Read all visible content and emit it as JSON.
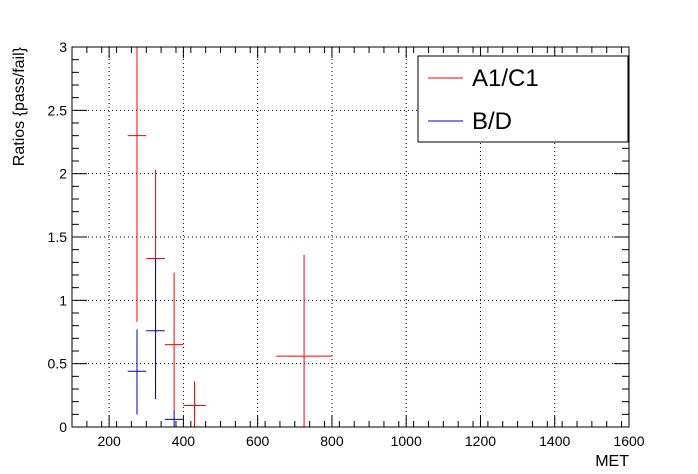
{
  "chart_data": {
    "type": "scatter",
    "style": "error-bars",
    "title": "",
    "xlabel": "MET",
    "ylabel": "Ratios  {pass/fail}",
    "xlim": [
      100,
      1600
    ],
    "ylim": [
      0,
      3
    ],
    "xticks": [
      200,
      400,
      600,
      800,
      1000,
      1200,
      1400,
      1600
    ],
    "xtick_labels": [
      "200",
      "400",
      "600",
      "800",
      "1000",
      "1200",
      "1400",
      "1600"
    ],
    "yticks": [
      0,
      0.5,
      1,
      1.5,
      2,
      2.5,
      3
    ],
    "ytick_labels": [
      "0",
      "0.5",
      "1",
      "1.5",
      "2",
      "2.5",
      "3"
    ],
    "grid": true,
    "legend_position": "top-right",
    "series": [
      {
        "name": "A1/C1",
        "color": "#ff0000",
        "points": [
          {
            "x": 275,
            "y": 2.3,
            "xerr": 25,
            "ylow": 0.83,
            "yhigh": 3.0
          },
          {
            "x": 325,
            "y": 1.33,
            "xerr": 25,
            "ylow": 0.22,
            "yhigh": 2.03
          },
          {
            "x": 375,
            "y": 0.65,
            "xerr": 25,
            "ylow": 0.12,
            "yhigh": 1.22
          },
          {
            "x": 430,
            "y": 0.17,
            "xerr": 30,
            "ylow": 0.0,
            "yhigh": 0.36
          },
          {
            "x": 725,
            "y": 0.56,
            "xerr": 75,
            "ylow": 0.0,
            "yhigh": 1.36
          }
        ]
      },
      {
        "name": "B/D",
        "color": "#0000cc",
        "points": [
          {
            "x": 275,
            "y": 0.44,
            "xerr": 25,
            "ylow": 0.1,
            "yhigh": 0.77
          },
          {
            "x": 325,
            "y": 0.76,
            "xerr": 25,
            "ylow": 0.22,
            "yhigh": 1.33
          },
          {
            "x": 375,
            "y": 0.06,
            "xerr": 25,
            "ylow": 0.0,
            "yhigh": 0.13
          }
        ]
      }
    ]
  }
}
